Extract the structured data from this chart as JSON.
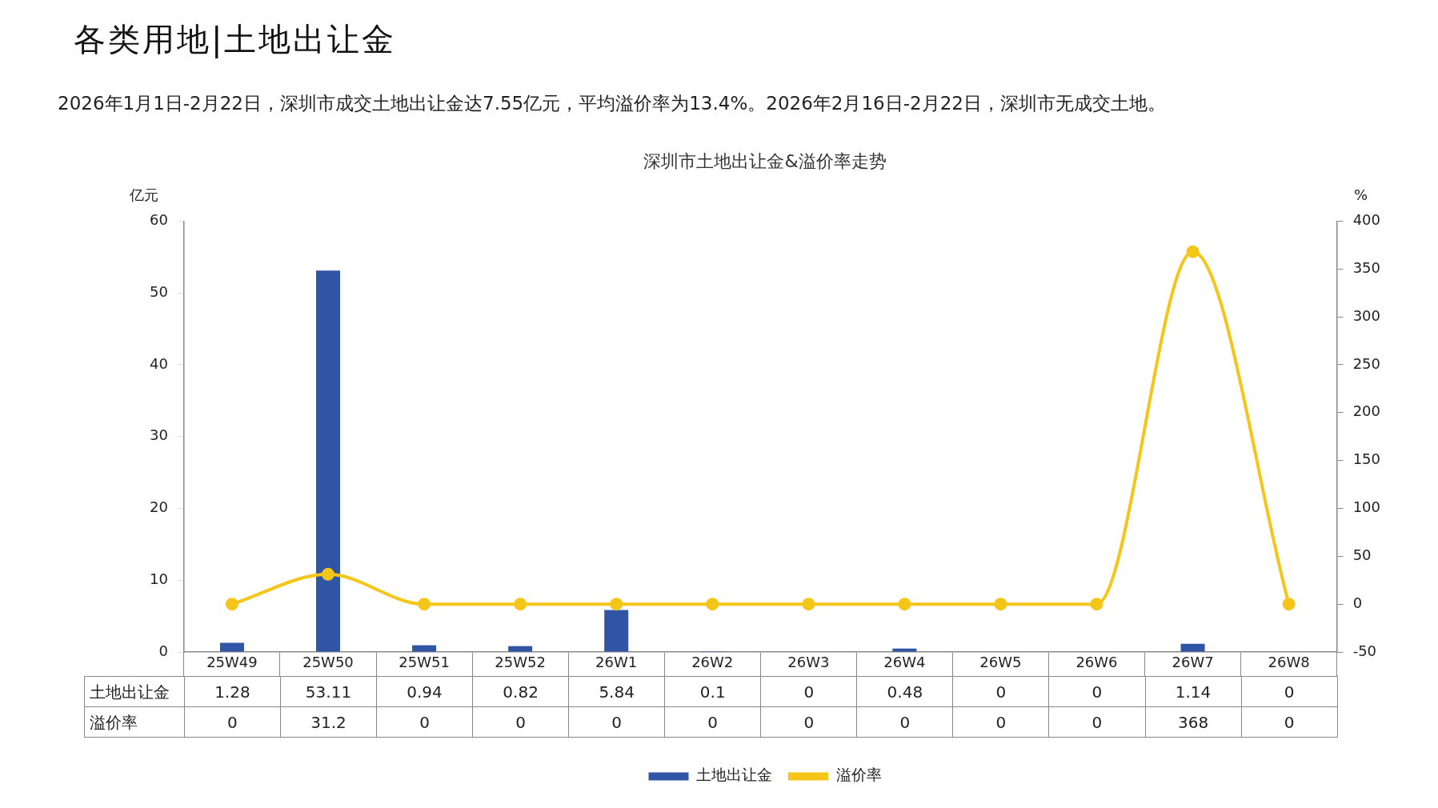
{
  "chart_data": {
    "type": "bar",
    "title": "深圳市土地出让金&溢价率走势",
    "subtitle": "2026年1月1日-2月22日，深圳市成交土地出让金达7.55亿元，平均溢价率为13.4%。2026年2月16日-2月22日，深圳市无成交土地。",
    "annotations": [
      "各类用地|土地出让金"
    ],
    "ylabel": "亿元",
    "y2label": "%",
    "categories": [
      "25W49",
      "25W50",
      "25W51",
      "25W52",
      "26W1",
      "26W2",
      "26W3",
      "26W4",
      "26W5",
      "26W6",
      "26W7",
      "26W8"
    ],
    "series": [
      {
        "name": "土地出让金",
        "color": "#2f55a4",
        "values": [
          1.28,
          53.11,
          0.94,
          0.82,
          5.84,
          0.1,
          0,
          0.48,
          0,
          0,
          1.14,
          0
        ]
      },
      {
        "name": "溢价率",
        "type": "line",
        "axis": "y2",
        "color": "#f5c518",
        "values": [
          0,
          31.2,
          0,
          0,
          0,
          0,
          0,
          0,
          0,
          0,
          368,
          0
        ]
      }
    ],
    "ylim": [
      0,
      60
    ],
    "yticks": [
      0,
      10,
      20,
      30,
      40,
      50,
      60
    ],
    "y2lim": [
      -50,
      400
    ],
    "y2ticks": [
      -50,
      0,
      50,
      100,
      150,
      200,
      250,
      300,
      350,
      400
    ],
    "data_labels": true,
    "grid": false,
    "legend": "bottom",
    "marker": "circle",
    "line_style": "solid"
  }
}
